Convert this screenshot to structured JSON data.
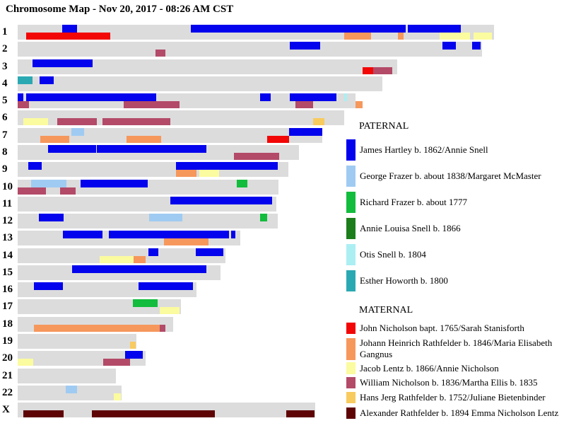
{
  "title": "Chromosome Map - Nov 20, 2017 - 08:26 AM CST",
  "chart_data": {
    "type": "chromosome_segment_map",
    "description": "DNA chromosome map; each chromosome bar has a paternal (top) half and maternal (bottom) half painted with segments attributed to ancestors. Segment positions are pixel extents read from the image.",
    "bar_color": "#DCDCDC",
    "bar_x_start": 25,
    "ancestors": {
      "JH": {
        "name": "James Hartley b. 1862/Annie Snell",
        "color": "#0303ED",
        "side": "paternal"
      },
      "GF": {
        "name": "George Frazer b. about 1838/Margaret McMaster",
        "color": "#9FCBF2",
        "side": "paternal"
      },
      "RF": {
        "name": "Richard Frazer b. about 1777",
        "color": "#12BC3C",
        "side": "paternal"
      },
      "ALS": {
        "name": "Annie Louisa Snell b. 1866",
        "color": "#1B7E1B",
        "side": "paternal"
      },
      "OS": {
        "name": "Otis Snell b. 1804",
        "color": "#ABEFF3",
        "side": "paternal"
      },
      "EH": {
        "name": "Esther Howorth b. 1800",
        "color": "#2BA9B2",
        "side": "paternal"
      },
      "JN": {
        "name": "John Nicholson bapt. 1765/Sarah Stanisforth",
        "color": "#F20606",
        "side": "maternal"
      },
      "JHR": {
        "name": "Johann Heinrich Rathfelder b. 1846/Maria Elisabeth Gangnus",
        "color": "#F6975C",
        "side": "maternal"
      },
      "JL": {
        "name": "Jacob Lentz b. 1866/Annie Nicholson",
        "color": "#FBFB9F",
        "side": "maternal"
      },
      "WN": {
        "name": "William Nicholson b. 1836/Martha Ellis b. 1835",
        "color": "#B34A68",
        "side": "maternal"
      },
      "HJR": {
        "name": "Hans Jerg Rathfelder b. 1752/Juliane Bietenbinder",
        "color": "#F8CB5F",
        "side": "maternal"
      },
      "AR": {
        "name": "Alexander Rathfelder b. 1894 Emma Nicholson Lentz",
        "color": "#5E0404",
        "side": "maternal"
      }
    },
    "chromosomes": [
      {
        "label": "1",
        "bar_end": 699,
        "top": [
          [
            88,
            109,
            "JH"
          ],
          [
            270,
            574,
            "JH"
          ],
          [
            577,
            652,
            "JH"
          ]
        ],
        "bottom": [
          [
            37,
            156,
            "JN"
          ],
          [
            487,
            525,
            "JHR"
          ],
          [
            563,
            571,
            "JHR"
          ],
          [
            622,
            665,
            "JL"
          ],
          [
            670,
            696,
            "JL"
          ]
        ]
      },
      {
        "label": "2",
        "bar_end": 682,
        "top": [
          [
            410,
            453,
            "JH"
          ],
          [
            626,
            645,
            "JH"
          ],
          [
            668,
            680,
            "JH"
          ]
        ],
        "bottom": [
          [
            220,
            234,
            "WN"
          ]
        ]
      },
      {
        "label": "3",
        "bar_end": 562,
        "top": [
          [
            46,
            131,
            "JH"
          ]
        ],
        "bottom": [
          [
            513,
            528,
            "JN"
          ],
          [
            528,
            555,
            "WN"
          ]
        ]
      },
      {
        "label": "4",
        "bar_end": 541,
        "top": [
          [
            25,
            46,
            "EH"
          ],
          [
            56,
            76,
            "JH"
          ]
        ],
        "bottom": []
      },
      {
        "label": "5",
        "bar_end": 503,
        "top": [
          [
            25,
            33,
            "JH"
          ],
          [
            37,
            221,
            "JH"
          ],
          [
            368,
            383,
            "JH"
          ],
          [
            410,
            476,
            "JH"
          ],
          [
            487,
            491,
            "OS"
          ]
        ],
        "bottom": [
          [
            25,
            41,
            "WN"
          ],
          [
            175,
            254,
            "WN"
          ],
          [
            418,
            443,
            "WN"
          ],
          [
            503,
            513,
            "JHR"
          ]
        ]
      },
      {
        "label": "6",
        "bar_end": 487,
        "top": [],
        "bottom": [
          [
            33,
            68,
            "JL"
          ],
          [
            81,
            137,
            "WN"
          ],
          [
            145,
            241,
            "WN"
          ],
          [
            443,
            459,
            "HJR"
          ]
        ]
      },
      {
        "label": "7",
        "bar_end": 456,
        "top": [
          [
            101,
            119,
            "GF"
          ],
          [
            409,
            456,
            "JH"
          ]
        ],
        "bottom": [
          [
            57,
            98,
            "JHR"
          ],
          [
            179,
            228,
            "JHR"
          ],
          [
            378,
            409,
            "JN"
          ]
        ]
      },
      {
        "label": "8",
        "bar_end": 423,
        "top": [
          [
            68,
            136,
            "JH"
          ],
          [
            137,
            292,
            "JH"
          ]
        ],
        "bottom": [
          [
            331,
            395,
            "WN"
          ]
        ]
      },
      {
        "label": "9",
        "bar_end": 408,
        "top": [
          [
            40,
            59,
            "JH"
          ],
          [
            249,
            393,
            "JH"
          ]
        ],
        "bottom": [
          [
            249,
            278,
            "JHR"
          ],
          [
            282,
            310,
            "JL"
          ]
        ]
      },
      {
        "label": "10",
        "bar_end": 394,
        "top": [
          [
            44,
            94,
            "GF"
          ],
          [
            114,
            209,
            "JH"
          ],
          [
            335,
            350,
            "RF"
          ]
        ],
        "bottom": [
          [
            25,
            65,
            "WN"
          ],
          [
            85,
            107,
            "WN"
          ]
        ]
      },
      {
        "label": "11",
        "bar_end": 391,
        "top": [
          [
            241,
            385,
            "JH"
          ]
        ],
        "bottom": []
      },
      {
        "label": "12",
        "bar_end": 393,
        "top": [
          [
            55,
            90,
            "JH"
          ],
          [
            211,
            258,
            "GF"
          ],
          [
            368,
            378,
            "RF"
          ]
        ],
        "bottom": []
      },
      {
        "label": "13",
        "bar_end": 340,
        "top": [
          [
            89,
            145,
            "JH"
          ],
          [
            154,
            324,
            "JH"
          ],
          [
            327,
            333,
            "JH"
          ]
        ],
        "bottom": [
          [
            232,
            295,
            "JHR"
          ]
        ]
      },
      {
        "label": "14",
        "bar_end": 319,
        "top": [
          [
            210,
            224,
            "JH"
          ],
          [
            277,
            316,
            "JH"
          ]
        ],
        "bottom": [
          [
            141,
            189,
            "JL"
          ],
          [
            189,
            206,
            "JHR"
          ]
        ]
      },
      {
        "label": "15",
        "bar_end": 312,
        "top": [
          [
            102,
            292,
            "JH"
          ]
        ],
        "bottom": []
      },
      {
        "label": "16",
        "bar_end": 278,
        "top": [
          [
            48,
            89,
            "JH"
          ],
          [
            196,
            273,
            "JH"
          ]
        ],
        "bottom": []
      },
      {
        "label": "17",
        "bar_end": 256,
        "top": [
          [
            188,
            223,
            "RF"
          ]
        ],
        "bottom": [
          [
            226,
            254,
            "JL"
          ]
        ]
      },
      {
        "label": "18",
        "bar_end": 245,
        "top": [],
        "bottom": [
          [
            48,
            226,
            "JHR"
          ],
          [
            226,
            234,
            "WN"
          ]
        ]
      },
      {
        "label": "19",
        "bar_end": 193,
        "top": [],
        "bottom": [
          [
            184,
            192,
            "HJR"
          ]
        ]
      },
      {
        "label": "20",
        "bar_end": 206,
        "top": [
          [
            177,
            202,
            "JH"
          ]
        ],
        "bottom": [
          [
            25,
            47,
            "JL"
          ],
          [
            146,
            184,
            "WN"
          ]
        ]
      },
      {
        "label": "21",
        "bar_end": 164,
        "top": [],
        "bottom": []
      },
      {
        "label": "22",
        "bar_end": 172,
        "top": [
          [
            93,
            109,
            "GF"
          ]
        ],
        "bottom": [
          [
            161,
            171,
            "JL"
          ]
        ]
      },
      {
        "label": "X",
        "bar_end": 446,
        "top": [],
        "bottom": [
          [
            33,
            90,
            "AR"
          ],
          [
            130,
            304,
            "AR"
          ],
          [
            405,
            445,
            "AR"
          ]
        ]
      }
    ],
    "legend": {
      "paternal_header": "PATERNAL",
      "maternal_header": "MATERNAL",
      "paternal": [
        "JH",
        "GF",
        "RF",
        "ALS",
        "OS",
        "EH"
      ],
      "maternal": [
        "JN",
        "JHR",
        "JL",
        "WN",
        "HJR",
        "AR"
      ]
    }
  }
}
